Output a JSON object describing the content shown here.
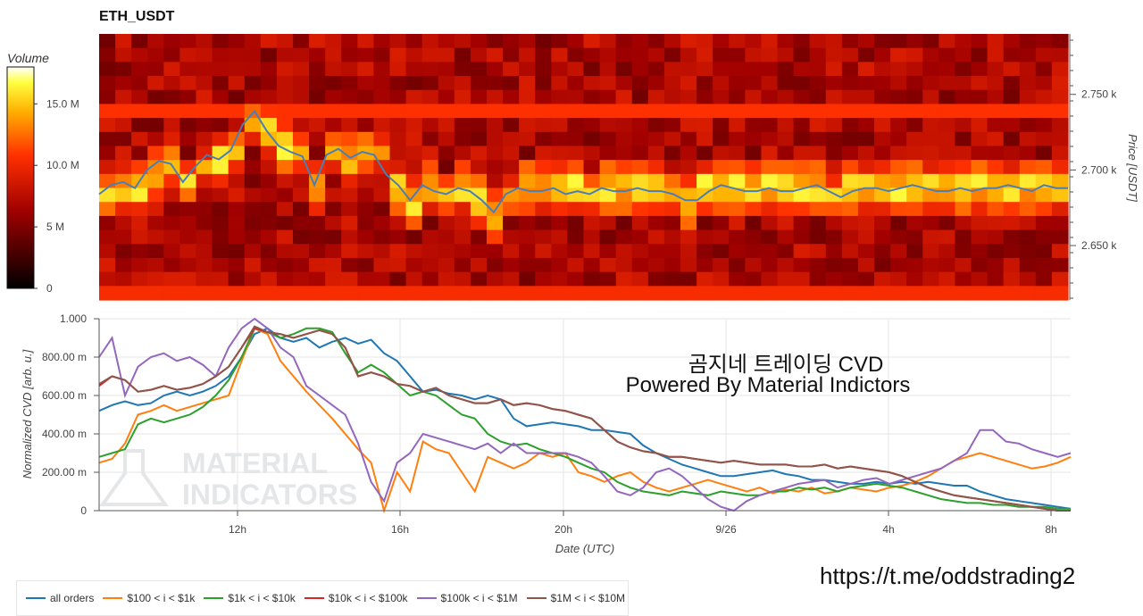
{
  "title": "ETH_USDT",
  "colorbar": {
    "title": "Volume",
    "ticks": [
      "15.0 M",
      "10.0 M",
      "5 M",
      "0"
    ],
    "values": [
      15,
      10,
      5,
      0
    ],
    "max": 18
  },
  "overlay": {
    "line1": "곰지네 트레이딩 CVD",
    "line2": "Powered By Material Indictors"
  },
  "watermark": {
    "line1": "MATERIAL",
    "line2": "INDICATORS"
  },
  "telegram": "https://t.me/oddstrading2",
  "colors": {
    "all": "#1f77b4",
    "s1": "#ff7f0e",
    "s2": "#2ca02c",
    "s3": "#d62728",
    "s4": "#9467bd",
    "s5": "#8c564b",
    "price": "#4a7fb5"
  },
  "chart_data": [
    {
      "type": "heatmap",
      "title": "ETH_USDT",
      "ylabel": "Price [USDT]",
      "yticks": [
        "2.750 k",
        "2.700 k",
        "2.650 k"
      ],
      "ytick_values": [
        2750,
        2700,
        2650
      ],
      "ylim": [
        2614,
        2790
      ],
      "colorbar_label": "Volume",
      "price_line": [
        2684,
        2690,
        2692,
        2688,
        2700,
        2706,
        2704,
        2692,
        2702,
        2710,
        2707,
        2713,
        2730,
        2739,
        2726,
        2716,
        2712,
        2709,
        2690,
        2710,
        2714,
        2708,
        2712,
        2710,
        2697,
        2690,
        2680,
        2690,
        2686,
        2684,
        2688,
        2686,
        2680,
        2672,
        2684,
        2688,
        2686,
        2686,
        2688,
        2684,
        2686,
        2684,
        2688,
        2686,
        2686,
        2688,
        2686,
        2686,
        2684,
        2680,
        2680,
        2686,
        2690,
        2688,
        2686,
        2686,
        2688,
        2686,
        2686,
        2688,
        2690,
        2686,
        2682,
        2686,
        2688,
        2688,
        2686,
        2688,
        2690,
        2688,
        2686,
        2686,
        2688,
        2686,
        2688,
        2688,
        2690,
        2688,
        2686,
        2690,
        2688,
        2688
      ]
    },
    {
      "type": "line",
      "xlabel": "Date (UTC)",
      "ylabel": "Normalized CVD [arb. u.]",
      "xticks": [
        "12h",
        "16h",
        "20h",
        "9/26",
        "4h",
        "8h"
      ],
      "yticks": [
        "1.000",
        "800.00 m",
        "600.00 m",
        "400.00 m",
        "200.00 m",
        "0"
      ],
      "ylim": [
        0,
        1
      ],
      "grid": true,
      "legend_position": "bottom",
      "series": [
        {
          "name": "all orders",
          "values": [
            0.52,
            0.55,
            0.57,
            0.55,
            0.56,
            0.6,
            0.62,
            0.6,
            0.62,
            0.65,
            0.7,
            0.8,
            0.92,
            0.95,
            0.9,
            0.88,
            0.9,
            0.85,
            0.88,
            0.9,
            0.87,
            0.89,
            0.82,
            0.78,
            0.7,
            0.62,
            0.63,
            0.61,
            0.6,
            0.58,
            0.6,
            0.58,
            0.48,
            0.44,
            0.45,
            0.46,
            0.45,
            0.44,
            0.42,
            0.42,
            0.41,
            0.4,
            0.34,
            0.3,
            0.27,
            0.24,
            0.22,
            0.2,
            0.18,
            0.18,
            0.19,
            0.2,
            0.21,
            0.19,
            0.18,
            0.16,
            0.16,
            0.15,
            0.14,
            0.14,
            0.15,
            0.14,
            0.15,
            0.14,
            0.15,
            0.14,
            0.13,
            0.13,
            0.1,
            0.08,
            0.06,
            0.05,
            0.04,
            0.03,
            0.02,
            0.01
          ]
        },
        {
          "name": "$100 < i < $1k",
          "values": [
            0.25,
            0.27,
            0.35,
            0.5,
            0.52,
            0.55,
            0.52,
            0.54,
            0.56,
            0.58,
            0.6,
            0.78,
            0.95,
            0.92,
            0.78,
            0.7,
            0.62,
            0.55,
            0.48,
            0.4,
            0.32,
            0.25,
            0.0,
            0.2,
            0.1,
            0.36,
            0.32,
            0.3,
            0.2,
            0.1,
            0.28,
            0.25,
            0.22,
            0.25,
            0.3,
            0.28,
            0.3,
            0.2,
            0.18,
            0.15,
            0.18,
            0.2,
            0.15,
            0.12,
            0.1,
            0.12,
            0.14,
            0.16,
            0.14,
            0.12,
            0.1,
            0.12,
            0.09,
            0.11,
            0.1,
            0.12,
            0.09,
            0.1,
            0.12,
            0.11,
            0.1,
            0.12,
            0.13,
            0.15,
            0.18,
            0.22,
            0.26,
            0.28,
            0.3,
            0.28,
            0.26,
            0.24,
            0.22,
            0.23,
            0.25,
            0.28
          ]
        },
        {
          "name": "$1k < i < $10k",
          "values": [
            0.28,
            0.3,
            0.32,
            0.45,
            0.48,
            0.46,
            0.48,
            0.5,
            0.54,
            0.6,
            0.68,
            0.8,
            0.95,
            0.93,
            0.9,
            0.92,
            0.95,
            0.95,
            0.93,
            0.82,
            0.72,
            0.76,
            0.72,
            0.66,
            0.6,
            0.62,
            0.6,
            0.55,
            0.5,
            0.48,
            0.4,
            0.36,
            0.34,
            0.35,
            0.32,
            0.3,
            0.28,
            0.25,
            0.22,
            0.2,
            0.15,
            0.12,
            0.1,
            0.09,
            0.08,
            0.1,
            0.09,
            0.08,
            0.1,
            0.09,
            0.08,
            0.08,
            0.1,
            0.1,
            0.12,
            0.11,
            0.12,
            0.1,
            0.12,
            0.13,
            0.14,
            0.13,
            0.12,
            0.1,
            0.08,
            0.06,
            0.05,
            0.04,
            0.04,
            0.03,
            0.03,
            0.02,
            0.02,
            0.02,
            0.01,
            0.01
          ]
        },
        {
          "name": "$10k < i < $100k",
          "values": [
            0.65,
            0.7,
            0.68,
            0.62,
            0.63,
            0.65,
            0.63,
            0.64,
            0.66,
            0.7,
            0.75,
            0.85,
            0.95,
            0.93,
            0.92,
            0.9,
            0.92,
            0.94,
            0.92,
            0.85,
            0.7,
            0.72,
            0.7,
            0.66,
            0.65,
            0.62,
            0.64,
            0.6,
            0.58,
            0.56,
            0.56,
            0.58,
            0.55,
            0.56,
            0.55,
            0.53,
            0.52,
            0.5,
            0.48,
            0.42,
            0.36,
            0.33,
            0.31,
            0.3,
            0.28,
            0.28,
            0.27,
            0.26,
            0.25,
            0.26,
            0.25,
            0.24,
            0.24,
            0.24,
            0.23,
            0.23,
            0.24,
            0.22,
            0.23,
            0.22,
            0.21,
            0.2,
            0.18,
            0.15,
            0.12,
            0.1,
            0.08,
            0.07,
            0.06,
            0.05,
            0.04,
            0.03,
            0.02,
            0.01,
            0.0,
            0.0
          ]
        },
        {
          "name": "$100k < i < $1M",
          "values": [
            0.8,
            0.9,
            0.6,
            0.75,
            0.8,
            0.82,
            0.78,
            0.8,
            0.76,
            0.7,
            0.85,
            0.95,
            1.0,
            0.95,
            0.85,
            0.8,
            0.65,
            0.6,
            0.55,
            0.5,
            0.35,
            0.15,
            0.05,
            0.25,
            0.3,
            0.4,
            0.38,
            0.36,
            0.34,
            0.32,
            0.35,
            0.3,
            0.35,
            0.3,
            0.3,
            0.3,
            0.3,
            0.28,
            0.25,
            0.18,
            0.1,
            0.08,
            0.12,
            0.2,
            0.22,
            0.18,
            0.12,
            0.06,
            0.02,
            0.0,
            0.05,
            0.08,
            0.1,
            0.12,
            0.14,
            0.15,
            0.16,
            0.12,
            0.14,
            0.16,
            0.17,
            0.14,
            0.16,
            0.18,
            0.2,
            0.22,
            0.26,
            0.3,
            0.42,
            0.42,
            0.36,
            0.35,
            0.32,
            0.3,
            0.28,
            0.3
          ]
        },
        {
          "name": "$1M < i < $10M",
          "values": [
            0.66,
            0.7,
            0.68,
            0.62,
            0.63,
            0.65,
            0.63,
            0.64,
            0.66,
            0.7,
            0.75,
            0.85,
            0.96,
            0.93,
            0.92,
            0.9,
            0.92,
            0.94,
            0.92,
            0.85,
            0.7,
            0.72,
            0.7,
            0.66,
            0.65,
            0.62,
            0.64,
            0.6,
            0.58,
            0.56,
            0.56,
            0.58,
            0.55,
            0.56,
            0.55,
            0.53,
            0.52,
            0.5,
            0.48,
            0.42,
            0.36,
            0.33,
            0.31,
            0.3,
            0.28,
            0.28,
            0.27,
            0.26,
            0.25,
            0.26,
            0.25,
            0.24,
            0.24,
            0.24,
            0.23,
            0.23,
            0.24,
            0.22,
            0.23,
            0.22,
            0.21,
            0.2,
            0.18,
            0.15,
            0.12,
            0.1,
            0.08,
            0.07,
            0.06,
            0.05,
            0.04,
            0.03,
            0.02,
            0.01,
            0.0,
            0.0
          ]
        }
      ]
    }
  ]
}
